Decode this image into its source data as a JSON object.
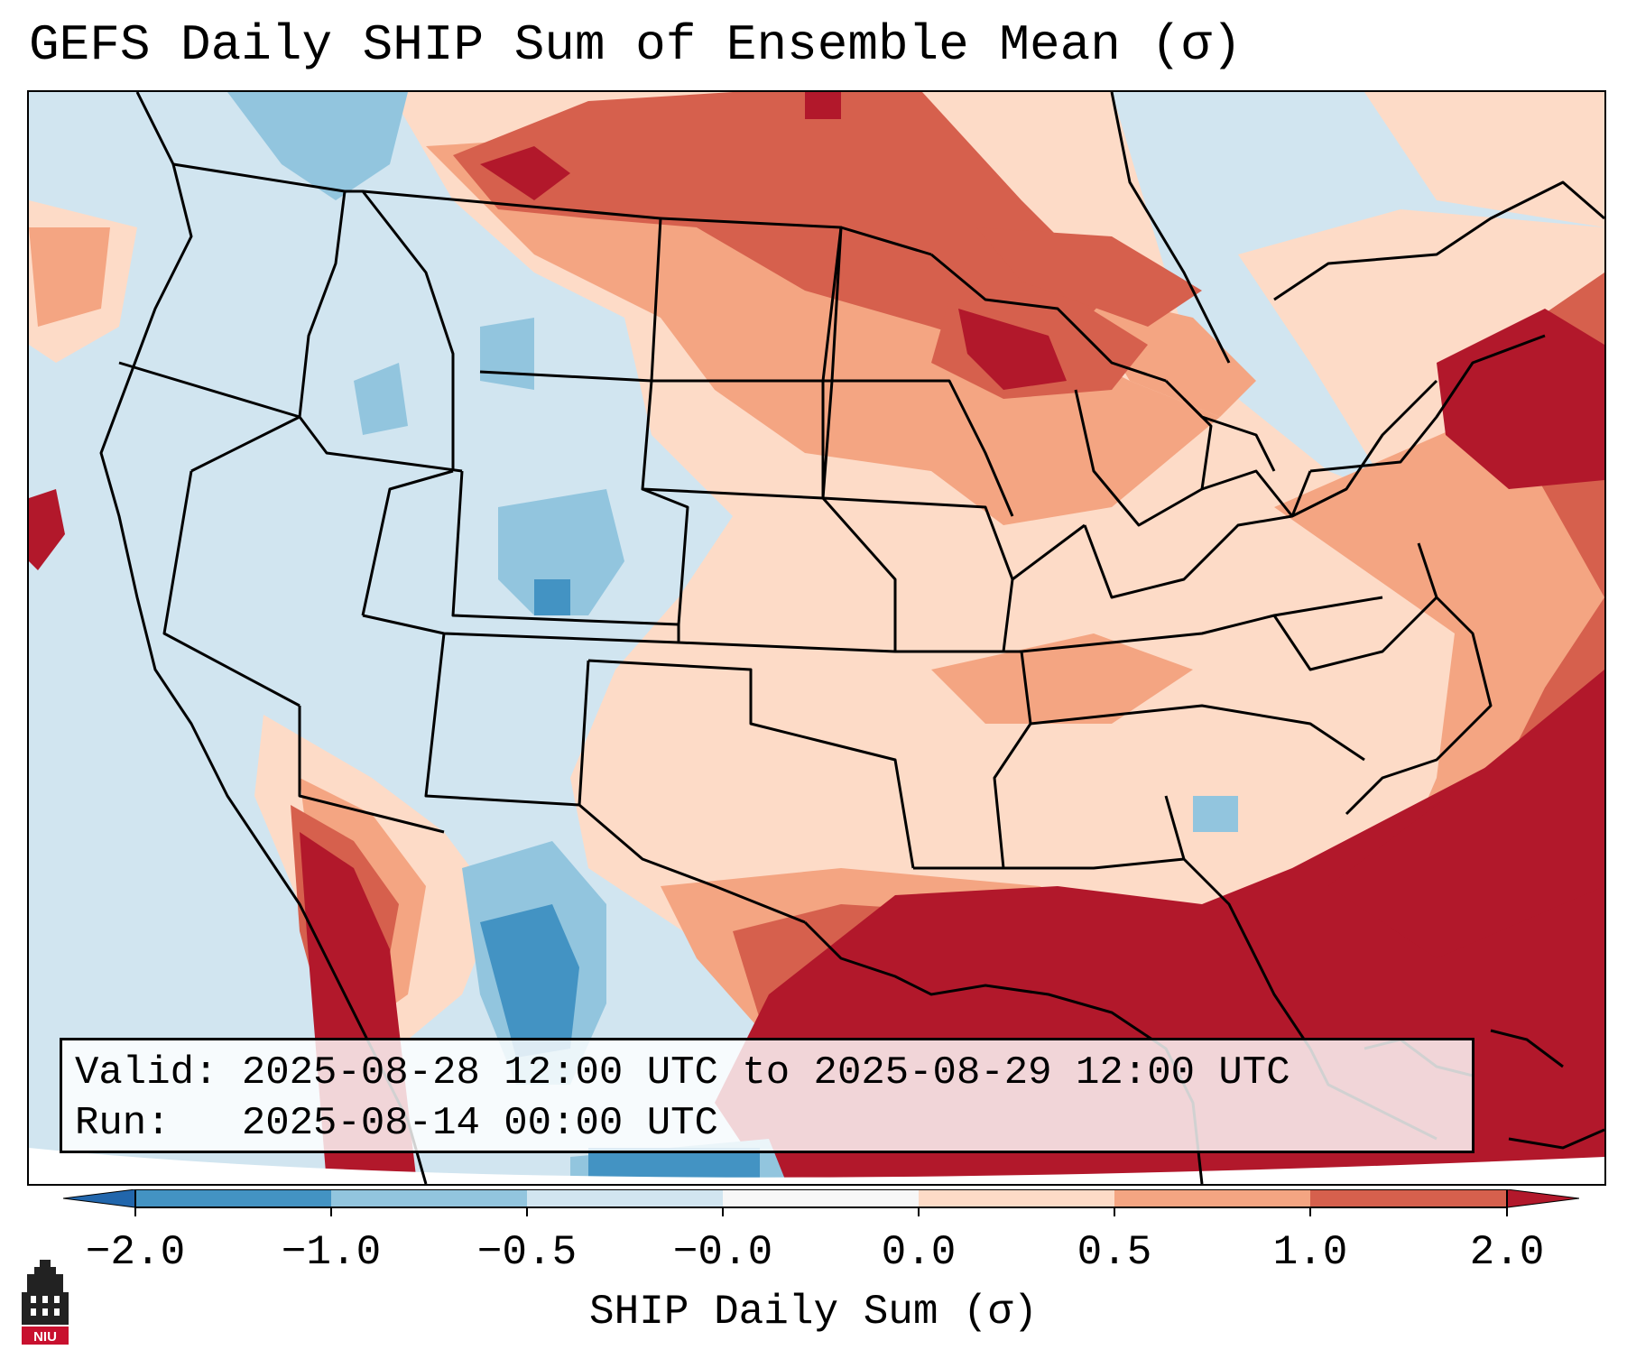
{
  "title": "GEFS Daily SHIP Sum of Ensemble Mean (σ)",
  "info": {
    "valid_line": "Valid: 2025-08-28 12:00 UTC to 2025-08-29 12:00 UTC",
    "run_line": "Run:   2025-08-14 00:00 UTC"
  },
  "colorbar": {
    "label": "SHIP Daily Sum (σ)",
    "ticks": [
      "−2.0",
      "−1.0",
      "−0.5",
      "−0.0",
      "0.0",
      "0.5",
      "1.0",
      "2.0"
    ],
    "colors": [
      "#4393c3",
      "#92c5de",
      "#d1e5f0",
      "#f7f7f7",
      "#fddbc7",
      "#f4a582",
      "#d6604d",
      "#b2182b"
    ]
  },
  "logo": {
    "text": "NIU",
    "color": "#c8102e"
  },
  "colors": {
    "neutral_blue": "#d1e5f0",
    "light_red": "#fddbc7",
    "mid_red": "#f4a582",
    "red": "#d6604d",
    "dark_red": "#b2182b",
    "mid_blue": "#92c5de",
    "dark_blue": "#4393c3"
  }
}
